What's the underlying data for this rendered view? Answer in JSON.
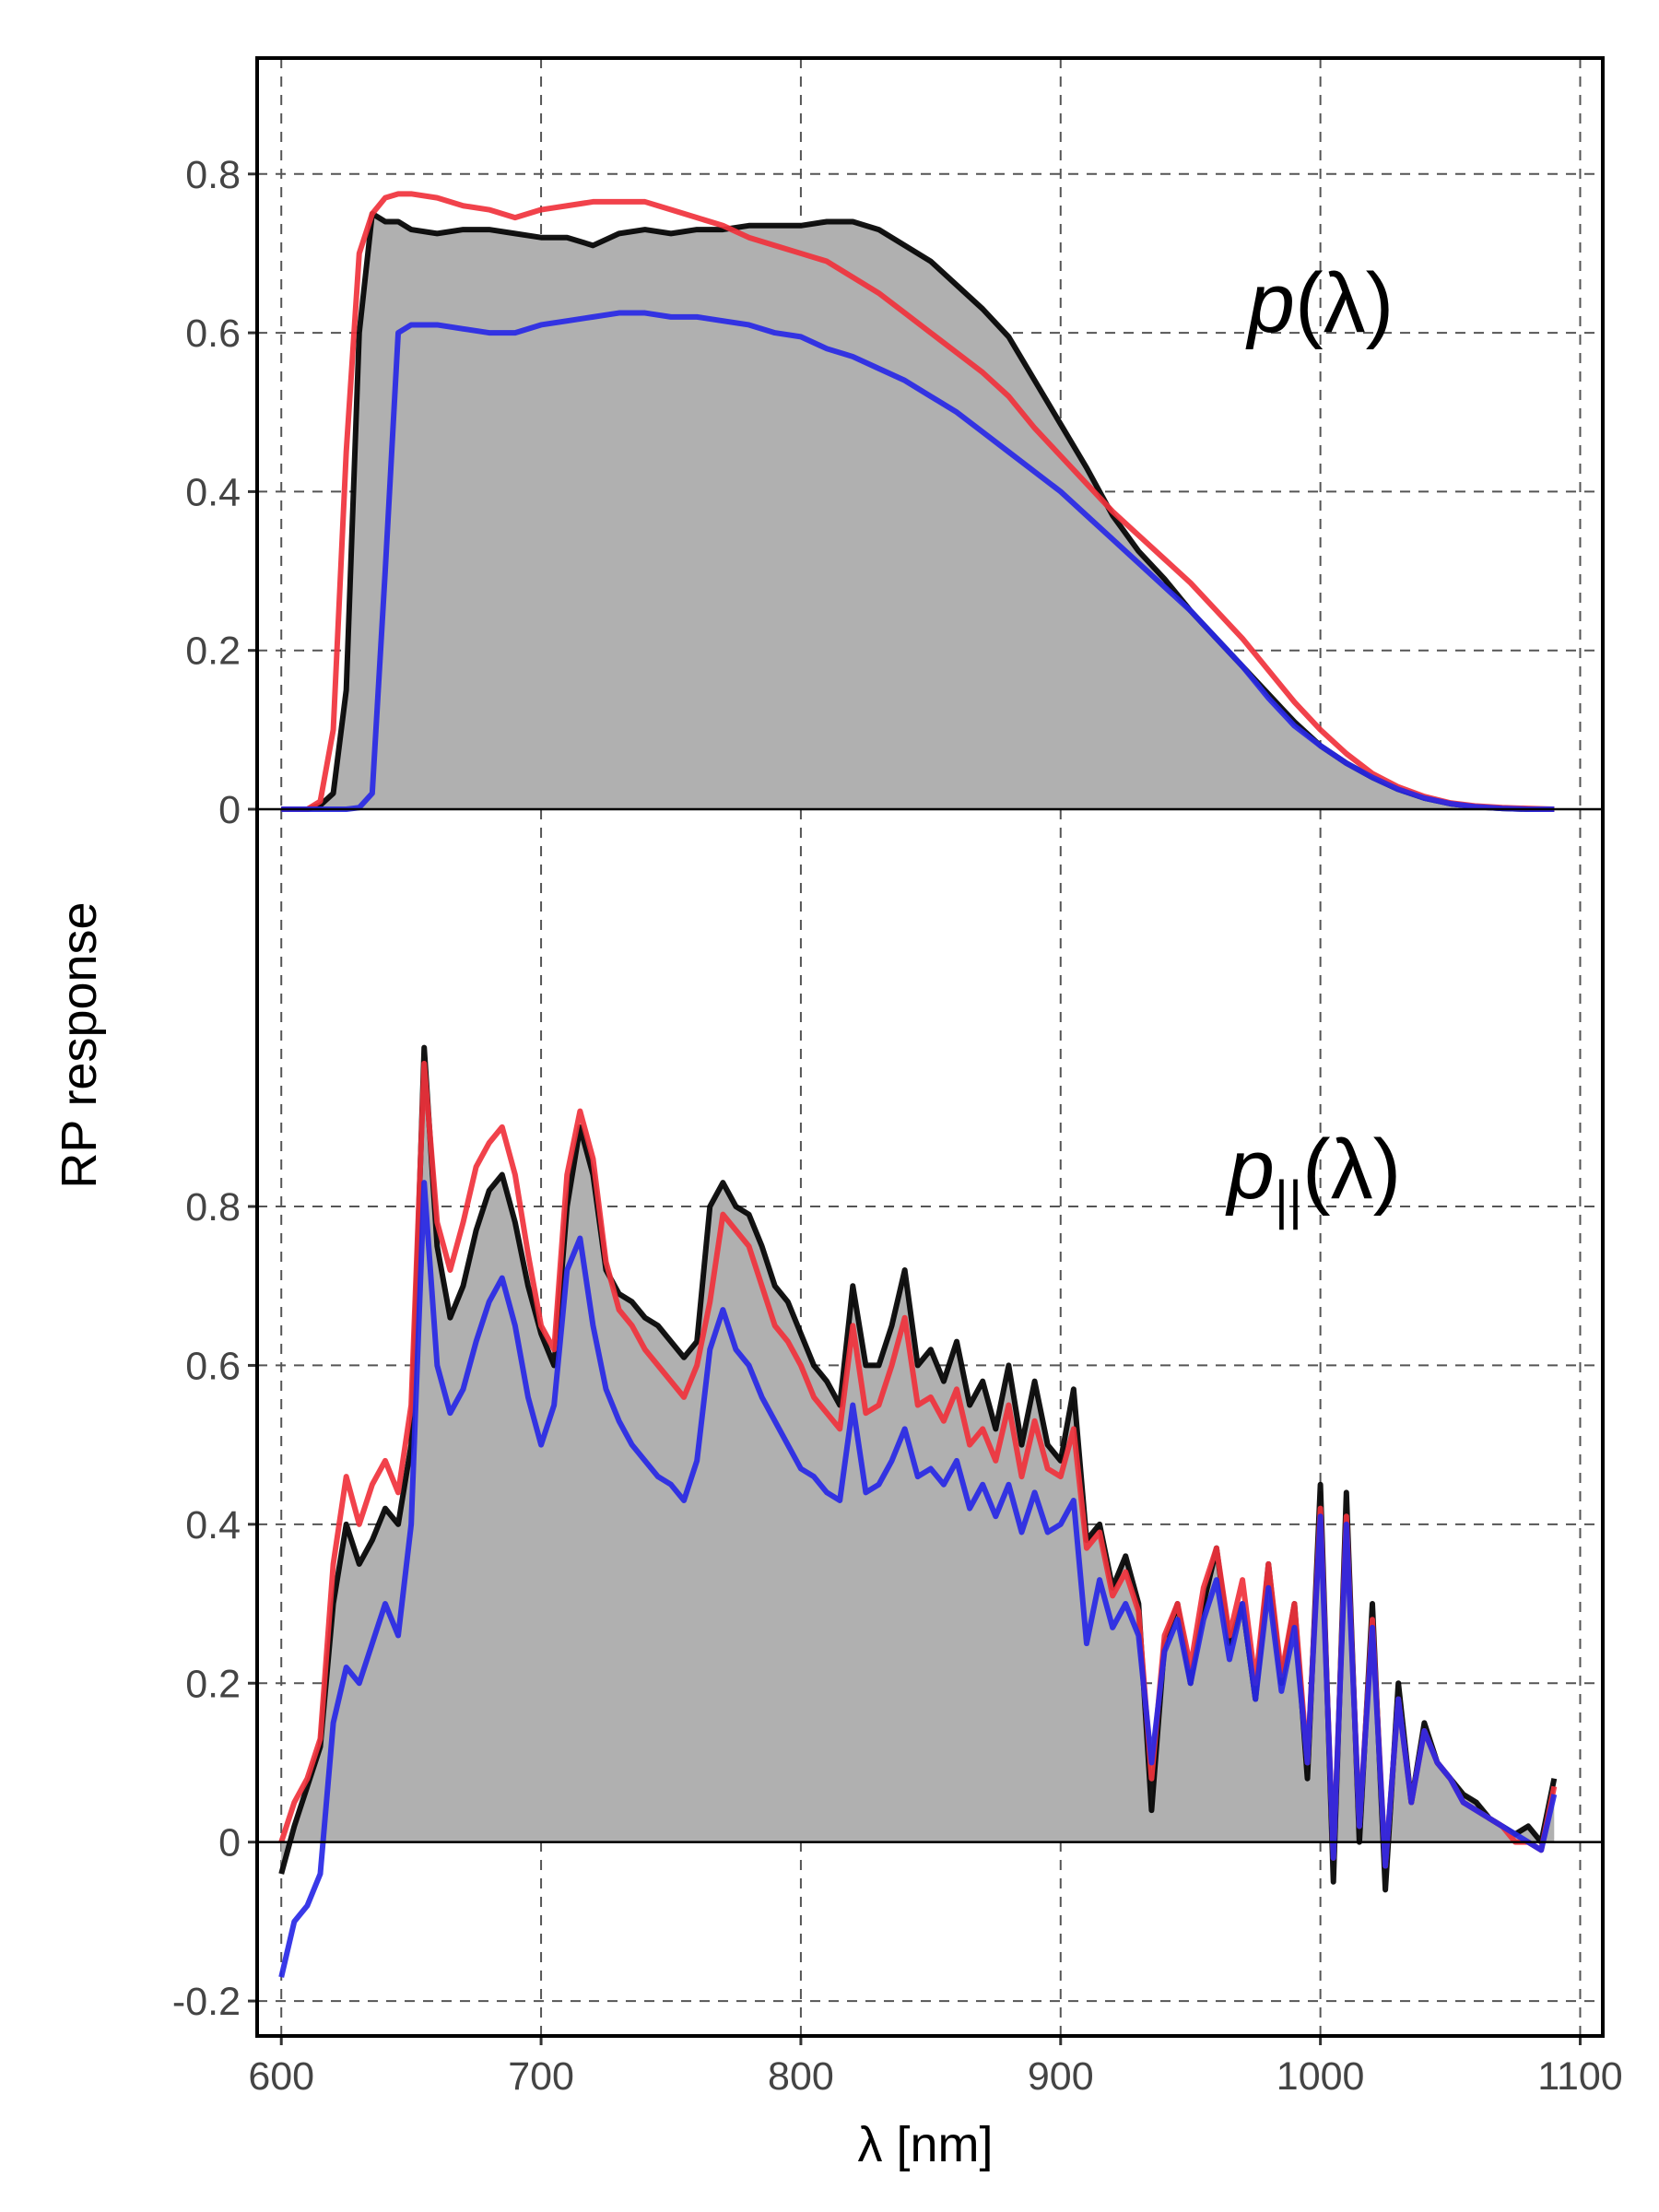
{
  "chart_data": [
    {
      "type": "line",
      "ylabel": "RP response",
      "annotation": {
        "symbol": "p",
        "argument": "(λ)"
      },
      "xlim": [
        590.7,
        1108.7
      ],
      "ylim": [
        0,
        0.946
      ],
      "yticks": [
        0,
        0.2,
        0.4,
        0.6,
        0.8
      ],
      "grid": true,
      "x": [
        600,
        605,
        610,
        615,
        620,
        625,
        630,
        635,
        640,
        645,
        650,
        660,
        670,
        680,
        690,
        700,
        710,
        720,
        730,
        740,
        750,
        760,
        770,
        780,
        790,
        800,
        810,
        820,
        830,
        840,
        850,
        860,
        870,
        880,
        890,
        900,
        910,
        920,
        930,
        940,
        950,
        960,
        970,
        980,
        990,
        1000,
        1010,
        1020,
        1030,
        1040,
        1050,
        1060,
        1070,
        1080,
        1090
      ],
      "series": [
        {
          "color": "#000000",
          "fill": "#b0b0b0",
          "values": [
            0,
            0,
            0,
            0.005,
            0.02,
            0.15,
            0.6,
            0.75,
            0.74,
            0.74,
            0.73,
            0.725,
            0.73,
            0.73,
            0.725,
            0.72,
            0.72,
            0.71,
            0.725,
            0.73,
            0.725,
            0.73,
            0.73,
            0.735,
            0.735,
            0.735,
            0.74,
            0.74,
            0.73,
            0.71,
            0.69,
            0.66,
            0.63,
            0.595,
            0.54,
            0.485,
            0.43,
            0.37,
            0.325,
            0.29,
            0.25,
            0.215,
            0.18,
            0.145,
            0.11,
            0.08,
            0.058,
            0.04,
            0.025,
            0.014,
            0.007,
            0.003,
            0.001,
            0,
            0
          ]
        },
        {
          "color": "#f0323c",
          "values": [
            0,
            0,
            0,
            0.01,
            0.1,
            0.45,
            0.7,
            0.75,
            0.77,
            0.775,
            0.775,
            0.77,
            0.76,
            0.755,
            0.745,
            0.755,
            0.76,
            0.765,
            0.765,
            0.765,
            0.755,
            0.745,
            0.735,
            0.72,
            0.71,
            0.7,
            0.69,
            0.67,
            0.65,
            0.625,
            0.6,
            0.575,
            0.55,
            0.52,
            0.48,
            0.445,
            0.41,
            0.375,
            0.345,
            0.315,
            0.285,
            0.25,
            0.215,
            0.175,
            0.135,
            0.1,
            0.07,
            0.045,
            0.028,
            0.016,
            0.008,
            0.004,
            0.002,
            0.001,
            0
          ]
        },
        {
          "color": "#2828e6",
          "values": [
            0,
            0,
            0,
            0,
            0,
            0,
            0.002,
            0.02,
            0.3,
            0.6,
            0.61,
            0.61,
            0.605,
            0.6,
            0.6,
            0.61,
            0.615,
            0.62,
            0.625,
            0.625,
            0.62,
            0.62,
            0.615,
            0.61,
            0.6,
            0.595,
            0.58,
            0.57,
            0.555,
            0.54,
            0.52,
            0.5,
            0.475,
            0.45,
            0.425,
            0.4,
            0.37,
            0.34,
            0.31,
            0.28,
            0.25,
            0.215,
            0.18,
            0.14,
            0.105,
            0.08,
            0.058,
            0.04,
            0.025,
            0.014,
            0.007,
            0.003,
            0.001,
            0,
            0
          ]
        }
      ]
    },
    {
      "type": "line",
      "xlabel": "λ [nm]",
      "annotation": {
        "symbol": "p",
        "subscript": "||",
        "argument": "(λ)"
      },
      "xlim": [
        590.7,
        1108.7
      ],
      "ylim": [
        -0.244,
        1.3
      ],
      "xticks": [
        600,
        700,
        800,
        900,
        1000,
        1100
      ],
      "yticks": [
        -0.2,
        0,
        0.2,
        0.4,
        0.6,
        0.8
      ],
      "grid": true,
      "x": [
        600,
        605,
        610,
        615,
        620,
        625,
        630,
        635,
        640,
        645,
        650,
        655,
        660,
        665,
        670,
        675,
        680,
        685,
        690,
        695,
        700,
        705,
        710,
        715,
        720,
        725,
        730,
        735,
        740,
        745,
        750,
        755,
        760,
        765,
        770,
        775,
        780,
        785,
        790,
        795,
        800,
        805,
        810,
        815,
        820,
        825,
        830,
        835,
        840,
        845,
        850,
        855,
        860,
        865,
        870,
        875,
        880,
        885,
        890,
        895,
        900,
        905,
        910,
        915,
        920,
        925,
        930,
        935,
        940,
        945,
        950,
        955,
        960,
        965,
        970,
        975,
        980,
        985,
        990,
        995,
        1000,
        1005,
        1010,
        1015,
        1020,
        1025,
        1030,
        1035,
        1040,
        1045,
        1050,
        1055,
        1060,
        1065,
        1070,
        1075,
        1080,
        1085,
        1090
      ],
      "series": [
        {
          "color": "#000000",
          "fill": "#b0b0b0",
          "values": [
            -0.04,
            0.02,
            0.07,
            0.12,
            0.3,
            0.4,
            0.35,
            0.38,
            0.42,
            0.4,
            0.5,
            1.0,
            0.75,
            0.66,
            0.7,
            0.77,
            0.82,
            0.84,
            0.78,
            0.7,
            0.64,
            0.6,
            0.8,
            0.9,
            0.84,
            0.72,
            0.69,
            0.68,
            0.66,
            0.65,
            0.63,
            0.61,
            0.63,
            0.8,
            0.83,
            0.8,
            0.79,
            0.75,
            0.7,
            0.68,
            0.64,
            0.6,
            0.58,
            0.55,
            0.7,
            0.6,
            0.6,
            0.65,
            0.72,
            0.6,
            0.62,
            0.58,
            0.63,
            0.55,
            0.58,
            0.52,
            0.6,
            0.5,
            0.58,
            0.5,
            0.48,
            0.57,
            0.38,
            0.4,
            0.32,
            0.36,
            0.3,
            0.04,
            0.25,
            0.3,
            0.2,
            0.3,
            0.37,
            0.25,
            0.3,
            0.18,
            0.35,
            0.2,
            0.3,
            0.08,
            0.45,
            -0.05,
            0.44,
            0,
            0.3,
            -0.06,
            0.2,
            0.05,
            0.15,
            0.1,
            0.08,
            0.06,
            0.05,
            0.03,
            0.02,
            0.01,
            0.02,
            0,
            0.08
          ]
        },
        {
          "color": "#f0323c",
          "values": [
            0,
            0.05,
            0.08,
            0.13,
            0.35,
            0.46,
            0.4,
            0.45,
            0.48,
            0.44,
            0.55,
            0.98,
            0.78,
            0.72,
            0.78,
            0.85,
            0.88,
            0.9,
            0.84,
            0.74,
            0.65,
            0.62,
            0.84,
            0.92,
            0.86,
            0.73,
            0.67,
            0.65,
            0.62,
            0.6,
            0.58,
            0.56,
            0.6,
            0.68,
            0.79,
            0.77,
            0.75,
            0.7,
            0.65,
            0.63,
            0.6,
            0.56,
            0.54,
            0.52,
            0.65,
            0.54,
            0.55,
            0.6,
            0.66,
            0.55,
            0.56,
            0.53,
            0.57,
            0.5,
            0.52,
            0.48,
            0.55,
            0.46,
            0.53,
            0.47,
            0.46,
            0.52,
            0.37,
            0.39,
            0.31,
            0.34,
            0.29,
            0.08,
            0.26,
            0.3,
            0.22,
            0.32,
            0.37,
            0.26,
            0.33,
            0.2,
            0.35,
            0.21,
            0.3,
            0.1,
            0.42,
            -0.02,
            0.41,
            0.02,
            0.28,
            -0.03,
            0.18,
            0.05,
            0.14,
            0.1,
            0.08,
            0.05,
            0.04,
            0.03,
            0.02,
            0,
            0,
            -0.01,
            0.07
          ]
        },
        {
          "color": "#2828e6",
          "values": [
            -0.17,
            -0.1,
            -0.08,
            -0.04,
            0.15,
            0.22,
            0.2,
            0.25,
            0.3,
            0.26,
            0.4,
            0.83,
            0.6,
            0.54,
            0.57,
            0.63,
            0.68,
            0.71,
            0.65,
            0.56,
            0.5,
            0.55,
            0.72,
            0.76,
            0.65,
            0.57,
            0.53,
            0.5,
            0.48,
            0.46,
            0.45,
            0.43,
            0.48,
            0.62,
            0.67,
            0.62,
            0.6,
            0.56,
            0.53,
            0.5,
            0.47,
            0.46,
            0.44,
            0.43,
            0.55,
            0.44,
            0.45,
            0.48,
            0.52,
            0.46,
            0.47,
            0.45,
            0.48,
            0.42,
            0.45,
            0.41,
            0.45,
            0.39,
            0.44,
            0.39,
            0.4,
            0.43,
            0.25,
            0.33,
            0.27,
            0.3,
            0.26,
            0.1,
            0.24,
            0.28,
            0.2,
            0.28,
            0.33,
            0.23,
            0.3,
            0.18,
            0.32,
            0.19,
            0.27,
            0.1,
            0.41,
            -0.02,
            0.4,
            0.02,
            0.27,
            -0.03,
            0.18,
            0.05,
            0.14,
            0.1,
            0.08,
            0.05,
            0.04,
            0.03,
            0.02,
            0.01,
            0,
            -0.01,
            0.06
          ]
        }
      ]
    }
  ]
}
